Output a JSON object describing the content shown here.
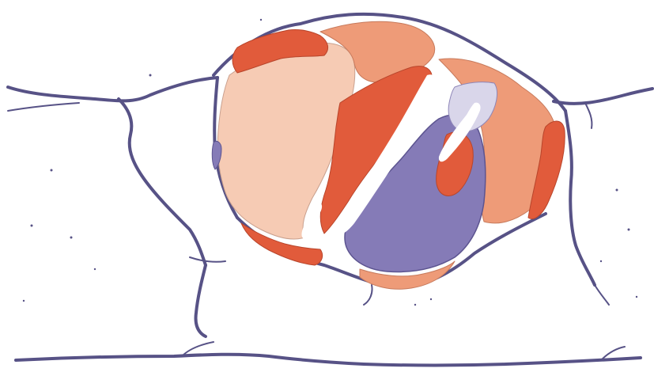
{
  "map": {
    "colors": {
      "outline": "#575286",
      "region_light_peach": "#f6cbb4",
      "region_salmon": "#ee9b78",
      "region_red_orange": "#e15b3b",
      "region_purple": "#857bb7",
      "region_lavender": "#d9d6ea",
      "background": "#ffffff"
    },
    "legend": [],
    "labels": []
  }
}
